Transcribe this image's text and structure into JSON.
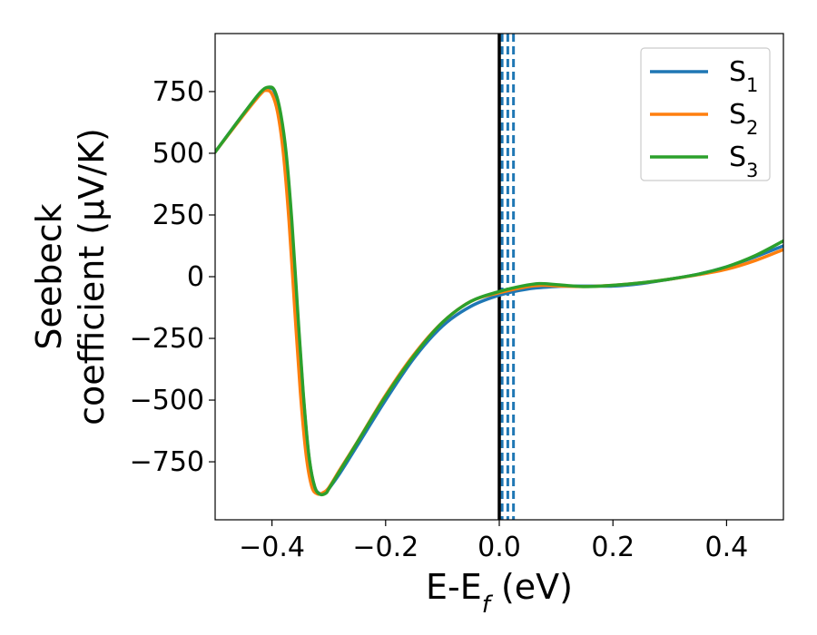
{
  "chart_data": {
    "type": "line",
    "xlabel": "E-E",
    "xlabel_sub": "f",
    "xlabel_unit": " (eV)",
    "ylabel_line1": "Seebeck",
    "ylabel_line2": "coefficient  (μV/K)",
    "xlim": [
      -0.5,
      0.5
    ],
    "ylim": [
      -985,
      985
    ],
    "xticks": [
      -0.4,
      -0.2,
      0.0,
      0.2,
      0.4
    ],
    "xtick_labels": [
      "−0.4",
      "−0.2",
      "0.0",
      "0.2",
      "0.4"
    ],
    "yticks": [
      750,
      500,
      250,
      0,
      -250,
      -500,
      -750
    ],
    "ytick_labels": [
      "750",
      "500",
      "250",
      "0",
      "−250",
      "−500",
      "−750"
    ],
    "grid": false,
    "legend_position": "top-right",
    "vertical_solid_line_x": 0.0,
    "vertical_dashed_lines_x": [
      0.005,
      0.015,
      0.025
    ],
    "vertical_solid_color": "#000000",
    "vertical_dashed_color": "#1f77b4",
    "series": [
      {
        "name": "S",
        "sub": "1",
        "color": "#1f77b4",
        "points": [
          [
            -0.5,
            505
          ],
          [
            -0.45,
            660
          ],
          [
            -0.42,
            745
          ],
          [
            -0.405,
            765
          ],
          [
            -0.395,
            745
          ],
          [
            -0.385,
            650
          ],
          [
            -0.375,
            480
          ],
          [
            -0.365,
            200
          ],
          [
            -0.355,
            -150
          ],
          [
            -0.345,
            -480
          ],
          [
            -0.335,
            -730
          ],
          [
            -0.325,
            -850
          ],
          [
            -0.315,
            -880
          ],
          [
            -0.305,
            -875
          ],
          [
            -0.3,
            -860
          ],
          [
            -0.28,
            -795
          ],
          [
            -0.25,
            -685
          ],
          [
            -0.2,
            -500
          ],
          [
            -0.15,
            -330
          ],
          [
            -0.1,
            -200
          ],
          [
            -0.05,
            -120
          ],
          [
            0.0,
            -75
          ],
          [
            0.05,
            -50
          ],
          [
            0.1,
            -40
          ],
          [
            0.15,
            -38
          ],
          [
            0.2,
            -38
          ],
          [
            0.25,
            -28
          ],
          [
            0.3,
            -10
          ],
          [
            0.35,
            10
          ],
          [
            0.4,
            40
          ],
          [
            0.45,
            80
          ],
          [
            0.5,
            125
          ]
        ]
      },
      {
        "name": "S",
        "sub": "2",
        "color": "#ff7f0e",
        "points": [
          [
            -0.5,
            505
          ],
          [
            -0.45,
            655
          ],
          [
            -0.42,
            740
          ],
          [
            -0.41,
            755
          ],
          [
            -0.4,
            740
          ],
          [
            -0.39,
            665
          ],
          [
            -0.38,
            500
          ],
          [
            -0.37,
            225
          ],
          [
            -0.36,
            -130
          ],
          [
            -0.35,
            -470
          ],
          [
            -0.34,
            -720
          ],
          [
            -0.33,
            -850
          ],
          [
            -0.32,
            -880
          ],
          [
            -0.31,
            -875
          ],
          [
            -0.3,
            -855
          ],
          [
            -0.28,
            -780
          ],
          [
            -0.25,
            -670
          ],
          [
            -0.2,
            -480
          ],
          [
            -0.15,
            -315
          ],
          [
            -0.1,
            -185
          ],
          [
            -0.05,
            -100
          ],
          [
            0.0,
            -65
          ],
          [
            0.05,
            -40
          ],
          [
            0.075,
            -35
          ],
          [
            0.1,
            -37
          ],
          [
            0.15,
            -40
          ],
          [
            0.2,
            -35
          ],
          [
            0.25,
            -25
          ],
          [
            0.3,
            -10
          ],
          [
            0.35,
            8
          ],
          [
            0.4,
            30
          ],
          [
            0.45,
            65
          ],
          [
            0.5,
            110
          ]
        ]
      },
      {
        "name": "S",
        "sub": "3",
        "color": "#2ca02c",
        "points": [
          [
            -0.5,
            505
          ],
          [
            -0.45,
            660
          ],
          [
            -0.42,
            748
          ],
          [
            -0.405,
            768
          ],
          [
            -0.395,
            752
          ],
          [
            -0.385,
            665
          ],
          [
            -0.375,
            500
          ],
          [
            -0.365,
            225
          ],
          [
            -0.355,
            -130
          ],
          [
            -0.345,
            -470
          ],
          [
            -0.335,
            -725
          ],
          [
            -0.325,
            -850
          ],
          [
            -0.315,
            -882
          ],
          [
            -0.305,
            -877
          ],
          [
            -0.3,
            -860
          ],
          [
            -0.28,
            -785
          ],
          [
            -0.25,
            -672
          ],
          [
            -0.2,
            -485
          ],
          [
            -0.15,
            -320
          ],
          [
            -0.1,
            -185
          ],
          [
            -0.05,
            -100
          ],
          [
            0.0,
            -60
          ],
          [
            0.04,
            -38
          ],
          [
            0.07,
            -28
          ],
          [
            0.1,
            -32
          ],
          [
            0.15,
            -40
          ],
          [
            0.2,
            -35
          ],
          [
            0.25,
            -25
          ],
          [
            0.3,
            -10
          ],
          [
            0.35,
            10
          ],
          [
            0.4,
            40
          ],
          [
            0.45,
            85
          ],
          [
            0.5,
            145
          ]
        ]
      }
    ]
  }
}
